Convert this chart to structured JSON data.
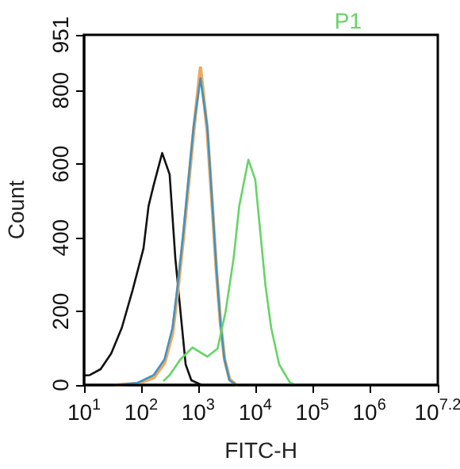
{
  "chart_data": {
    "type": "line",
    "xlabel": "FITC-H",
    "ylabel": "Count",
    "annotations": [
      "P1"
    ],
    "log": "x",
    "xlim": [
      10,
      15848931.92
    ],
    "xticks": [
      {
        "value": 10,
        "label": "10$^{1}$"
      },
      {
        "value": 100,
        "label": "10$^{2}$"
      },
      {
        "value": 1000,
        "label": "10$^{3}$"
      },
      {
        "value": 10000,
        "label": "10$^{4}$"
      },
      {
        "value": 100000,
        "label": "10$^{5}$"
      },
      {
        "value": 1000000,
        "label": "10$^{6}$"
      },
      {
        "value": 15848931.92,
        "label": "10$^{7.2}$"
      }
    ],
    "ylim": [
      0,
      951
    ],
    "yticks": [
      0,
      200,
      400,
      600,
      800,
      951
    ],
    "grid": false,
    "marker": "none",
    "line_style": "solid",
    "series": [
      {
        "color": "#111111",
        "x": [
          10,
          12.6,
          19.5,
          30,
          46,
          71,
          110,
          135,
          166,
          234,
          316,
          398,
          490,
          603,
          759,
          1150
        ],
        "values": [
          26,
          27,
          43,
          86,
          156,
          258,
          371,
          486,
          543,
          630,
          572,
          344,
          199,
          56,
          13,
          0
        ]
      },
      {
        "color": "#f0a860",
        "x": [
          37,
          87,
          166,
          257,
          355,
          437,
          550,
          676,
          832,
          1096,
          1445,
          1778,
          2089,
          2455,
          2884,
          3548,
          4677
        ],
        "values": [
          0,
          4,
          20,
          60,
          140,
          255,
          400,
          545,
          690,
          861,
          690,
          480,
          310,
          170,
          72,
          15,
          0
        ]
      },
      {
        "color": "#3d94c4",
        "x": [
          37,
          87,
          166,
          257,
          355,
          437,
          550,
          676,
          832,
          1096,
          1445,
          1778,
          2089,
          2455,
          2884,
          3548,
          4677
        ],
        "values": [
          0,
          6,
          27,
          70,
          156,
          271,
          414,
          559,
          701,
          833,
          701,
          486,
          314,
          171,
          70,
          13,
          0
        ]
      },
      {
        "color": "#66d466",
        "x": [
          250,
          316,
          490,
          794,
          1445,
          2188,
          3020,
          4169,
          5248,
          7586,
          10000,
          12300,
          15100,
          19000,
          26300,
          40700,
          53700
        ],
        "values": [
          12,
          27,
          70,
          102,
          77,
          99,
          199,
          343,
          486,
          612,
          558,
          414,
          271,
          156,
          56,
          6,
          0
        ]
      }
    ]
  }
}
